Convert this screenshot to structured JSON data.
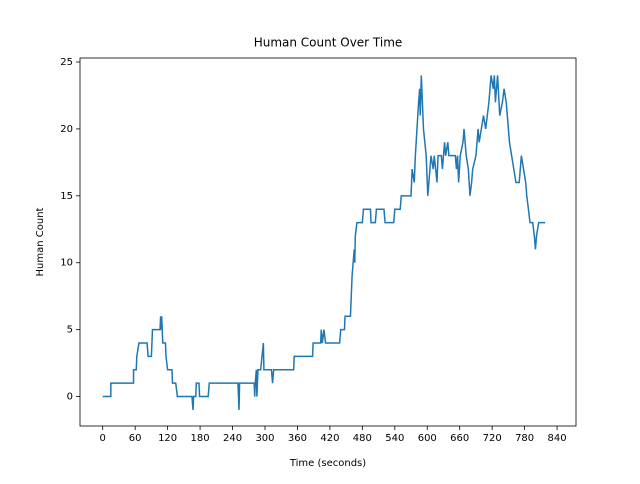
{
  "chart_data": {
    "type": "line",
    "title": "Human Count Over Time",
    "x_label": "Time (seconds)",
    "y_label": "Human Count",
    "series": [
      {
        "color": "#1f77b4",
        "x": [
          0,
          15,
          15,
          57,
          57,
          62,
          63,
          67,
          82,
          84,
          90,
          92,
          106,
          107,
          108,
          109,
          111,
          116,
          117,
          120,
          128,
          129,
          135,
          138,
          165,
          167,
          168,
          172,
          173,
          178,
          179,
          195,
          197,
          250,
          252,
          253,
          268,
          280,
          281,
          282,
          284,
          285,
          287,
          292,
          297,
          298,
          312,
          314,
          316,
          353,
          354,
          388,
          389,
          403,
          404,
          406,
          409,
          412,
          438,
          440,
          447,
          448,
          458,
          459,
          461,
          463,
          465,
          466,
          467,
          470,
          480,
          482,
          495,
          496,
          504,
          506,
          520,
          522,
          538,
          540,
          550,
          552,
          570,
          572,
          576,
          578,
          581,
          584,
          586,
          587,
          589,
          591,
          593,
          598,
          600,
          601,
          605,
          607,
          611,
          613,
          618,
          620,
          626,
          628,
          632,
          634,
          638,
          640,
          652,
          654,
          656,
          658,
          661,
          666,
          668,
          672,
          676,
          679,
          682,
          684,
          690,
          694,
          696,
          700,
          704,
          708,
          714,
          716,
          718,
          722,
          724,
          726,
          730,
          734,
          739,
          742,
          746,
          748,
          752,
          756,
          760,
          764,
          770,
          774,
          778,
          782,
          784,
          787,
          790,
          795,
          798,
          800,
          802,
          806,
          818
        ],
        "values": [
          0,
          0,
          1,
          1,
          2,
          2,
          3,
          4,
          4,
          3,
          3,
          5,
          5,
          6,
          5,
          6,
          4,
          4,
          3,
          2,
          2,
          1,
          1,
          0,
          0,
          -1,
          0,
          0,
          1,
          1,
          0,
          0,
          1,
          1,
          -1,
          1,
          1,
          1,
          0,
          1,
          2,
          0,
          2,
          2,
          4,
          2,
          2,
          1,
          2,
          2,
          3,
          3,
          4,
          4,
          5,
          4,
          5,
          4,
          4,
          5,
          5,
          6,
          6,
          7,
          9,
          10,
          11,
          10,
          12,
          13,
          13,
          14,
          14,
          13,
          13,
          14,
          14,
          13,
          13,
          14,
          14,
          15,
          15,
          17,
          16,
          18,
          20,
          22,
          23,
          21,
          24,
          22,
          20,
          18,
          16,
          15,
          17,
          18,
          17,
          18,
          16,
          18,
          18,
          17,
          19,
          18,
          19,
          18,
          18,
          17,
          18,
          16,
          18,
          19,
          20,
          18,
          17,
          15,
          16,
          17,
          18,
          20,
          19,
          20,
          21,
          20,
          22,
          23,
          24,
          23,
          24,
          22,
          24,
          21,
          22,
          23,
          22,
          21,
          19,
          18,
          17,
          16,
          16,
          18,
          17,
          16,
          15,
          14,
          13,
          13,
          12,
          11,
          12,
          13,
          13
        ]
      }
    ],
    "xlim": [
      -42,
      875
    ],
    "ylim": [
      -2.2,
      25.3
    ],
    "xticks": [
      0,
      60,
      120,
      180,
      240,
      300,
      360,
      420,
      480,
      540,
      600,
      660,
      720,
      780,
      840
    ],
    "yticks": [
      0,
      5,
      10,
      15,
      20,
      25
    ]
  }
}
